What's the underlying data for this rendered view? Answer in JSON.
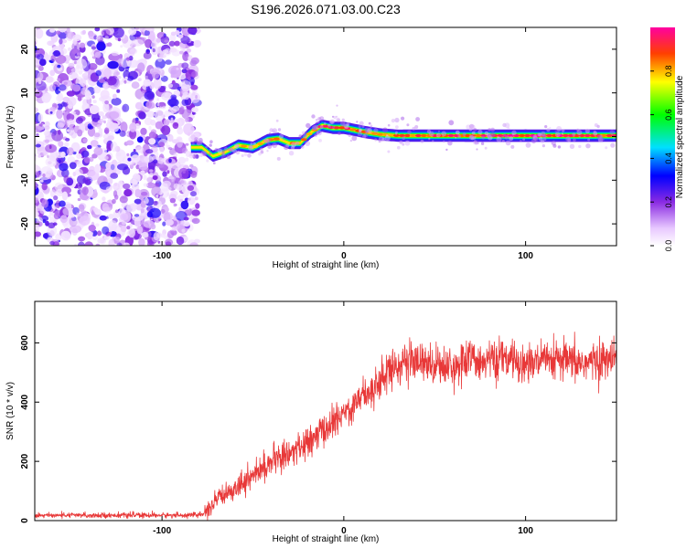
{
  "chart_data": [
    {
      "type": "heatmap",
      "title": "S196.2026.071.03.00.C23",
      "xlabel": "Height of straight line (km)",
      "ylabel": "Frequency (Hz)",
      "xlim": [
        -170,
        150
      ],
      "ylim": [
        -25,
        25
      ],
      "x_ticks": [
        "-100",
        "0",
        "100"
      ],
      "y_ticks": [
        "20",
        "10",
        "0",
        "-10",
        "-20"
      ],
      "colorbar": {
        "label": "Normalized spectral amplitude",
        "range": [
          0,
          1
        ],
        "ticks": [
          "0.0",
          "0.2",
          "0.4",
          "0.6",
          "0.8"
        ]
      },
      "noise_region": {
        "x_range": [
          -170,
          -82
        ],
        "description_level": "low"
      },
      "ridge": {
        "x": [
          -84,
          -78,
          -72,
          -65,
          -58,
          -50,
          -42,
          -36,
          -30,
          -24,
          -18,
          -12,
          -6,
          0,
          6,
          12,
          20,
          30,
          60,
          100,
          150
        ],
        "frequency": [
          -2.5,
          -2.5,
          -4.5,
          -3.5,
          -2.0,
          -2.5,
          -0.8,
          -0.5,
          -1.5,
          -1.5,
          1.0,
          2.5,
          2.0,
          2.0,
          1.5,
          1.0,
          0.5,
          0.2,
          0.2,
          0.2,
          0.2
        ],
        "amplitude": [
          0.5,
          0.6,
          0.65,
          0.7,
          0.75,
          0.75,
          0.8,
          0.8,
          0.8,
          0.8,
          0.85,
          0.9,
          0.9,
          0.9,
          0.85,
          0.85,
          0.85,
          0.85,
          0.9,
          0.95,
          0.9
        ]
      }
    },
    {
      "type": "line",
      "title": "",
      "xlabel": "Height of straight line (km)",
      "ylabel": "SNR (10 * v/v)",
      "xlim": [
        -170,
        150
      ],
      "ylim": [
        0,
        740
      ],
      "x_ticks": [
        "-100",
        "0",
        "100"
      ],
      "y_ticks": [
        "0",
        "200",
        "400",
        "600"
      ],
      "color": "#e83838",
      "series": [
        {
          "name": "SNR",
          "x": [
            -170,
            -150,
            -130,
            -110,
            -90,
            -78,
            -72,
            -66,
            -60,
            -54,
            -48,
            -42,
            -36,
            -30,
            -24,
            -18,
            -12,
            -6,
            0,
            6,
            12,
            18,
            24,
            30,
            40,
            50,
            60,
            70,
            80,
            90,
            100,
            110,
            120,
            130,
            140,
            150
          ],
          "mean": [
            18,
            18,
            18,
            18,
            18,
            20,
            50,
            90,
            110,
            135,
            160,
            190,
            210,
            230,
            245,
            270,
            300,
            330,
            360,
            400,
            430,
            460,
            500,
            530,
            535,
            530,
            520,
            545,
            540,
            545,
            530,
            535,
            540,
            530,
            540,
            545
          ],
          "noise": [
            7,
            7,
            7,
            7,
            7,
            8,
            30,
            30,
            30,
            35,
            35,
            40,
            40,
            40,
            40,
            45,
            45,
            45,
            45,
            45,
            50,
            55,
            55,
            55,
            55,
            55,
            55,
            55,
            55,
            55,
            55,
            55,
            55,
            55,
            55,
            55
          ]
        }
      ]
    }
  ]
}
